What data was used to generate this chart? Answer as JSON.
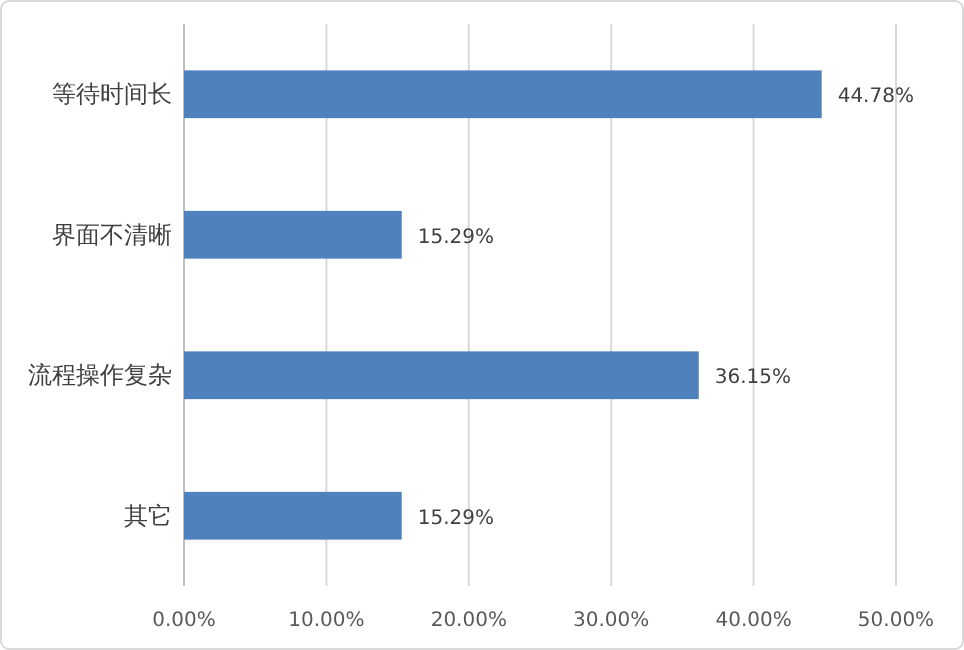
{
  "chart_data": {
    "type": "bar",
    "orientation": "horizontal",
    "categories": [
      "等待时间长",
      "界面不清晰",
      "流程操作复杂",
      "其它"
    ],
    "values": [
      44.78,
      15.29,
      36.15,
      15.29
    ],
    "value_labels": [
      "44.78%",
      "15.29%",
      "36.15%",
      "15.29%"
    ],
    "color": "#4f81bd",
    "xlim": [
      0,
      50
    ],
    "xticks": [
      {
        "value": 0,
        "label": "0.00%"
      },
      {
        "value": 10,
        "label": "10.00%"
      },
      {
        "value": 20,
        "label": "20.00%"
      },
      {
        "value": 30,
        "label": "30.00%"
      },
      {
        "value": 40,
        "label": "40.00%"
      },
      {
        "value": 50,
        "label": "50.00%"
      }
    ],
    "grid": "x"
  }
}
